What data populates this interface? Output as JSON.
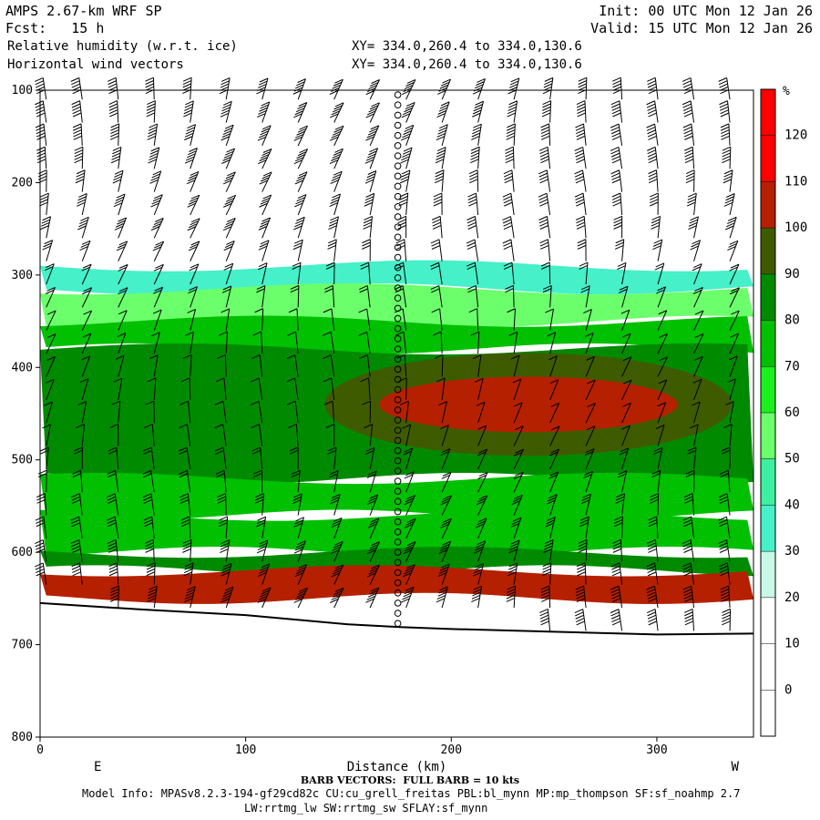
{
  "header": {
    "model": "AMPS 2.67-km WRF SP",
    "fcst": "Fcst:   15 h",
    "init": "Init: 00 UTC Mon 12 Jan 26",
    "valid": "Valid: 15 UTC Mon 12 Jan 26",
    "field1": "Relative humidity (w.r.t. ice)",
    "field2": "Horizontal wind vectors",
    "xy1": "XY= 334.0,260.4 to 334.0,130.6",
    "xy2": "XY= 334.0,260.4 to 334.0,130.6"
  },
  "footer": {
    "barb": "BARB VECTORS:  FULL BARB = 10 kts",
    "model_info": "Model Info: MPASv8.2.3-194-gf29cd82c CU:cu_grell_freitas PBL:bl_mynn MP:mp_thompson SF:sf_noahmp 2.7",
    "physics": "LW:rrtmg_lw SW:rrtmg_sw SFLAY:sf_mynn"
  },
  "chart_data": {
    "type": "heatmap",
    "title": "Relative humidity (w.r.t. ice)",
    "xlabel": "Distance (km)",
    "ylabel": "",
    "xlim": [
      0,
      347
    ],
    "ylim": [
      800,
      100
    ],
    "x_ticks": [
      "0",
      "100",
      "200",
      "300"
    ],
    "y_ticks": [
      "100",
      "200",
      "300",
      "400",
      "500",
      "600",
      "700",
      "800"
    ],
    "x_end_labels": {
      "left": "E",
      "right": "W"
    },
    "colorbar": {
      "unit": "%",
      "labels": [
        "120",
        "110",
        "100",
        "90",
        "80",
        "70",
        "60",
        "50",
        "40",
        "30",
        "20",
        "10",
        "0"
      ],
      "bins": [
        {
          "min": 120,
          "color": "#ff0000"
        },
        {
          "min": 110,
          "color": "#b52000"
        },
        {
          "min": 100,
          "color": "#3f5b00"
        },
        {
          "min": 90,
          "color": "#008a00"
        },
        {
          "min": 80,
          "color": "#00c000"
        },
        {
          "min": 70,
          "color": "#1cf01c"
        },
        {
          "min": 60,
          "color": "#6cff6c"
        },
        {
          "min": 50,
          "color": "#3cf0a0"
        },
        {
          "min": 40,
          "color": "#46f0c8"
        },
        {
          "min": 30,
          "color": "#c8f8e6"
        },
        {
          "min": 20,
          "color": "#ffffff"
        },
        {
          "min": 10,
          "color": "#ffffff"
        },
        {
          "min": 0,
          "color": "#ffffff"
        }
      ]
    },
    "terrain_hpa": [
      [
        0,
        655
      ],
      [
        50,
        662
      ],
      [
        100,
        668
      ],
      [
        150,
        678
      ],
      [
        175,
        681
      ],
      [
        200,
        683
      ],
      [
        250,
        686
      ],
      [
        300,
        689
      ],
      [
        347,
        688
      ]
    ],
    "moist_layers": [
      {
        "top": 290,
        "bottom": 315,
        "rh": 40
      },
      {
        "top": 315,
        "bottom": 350,
        "rh": 60
      },
      {
        "top": 350,
        "bottom": 380,
        "rh": 80
      },
      {
        "top": 380,
        "bottom": 520,
        "rh": 90
      },
      {
        "top": 520,
        "bottom": 560,
        "rh": 80
      },
      {
        "top": 560,
        "bottom": 600,
        "rh": 80
      },
      {
        "top": 600,
        "bottom": 620,
        "rh": 90
      },
      {
        "top": 620,
        "bottom": 650,
        "rh": 110
      }
    ],
    "max_core": {
      "x_range": [
        165,
        310
      ],
      "p_range": [
        410,
        470
      ],
      "rh": 110
    }
  }
}
